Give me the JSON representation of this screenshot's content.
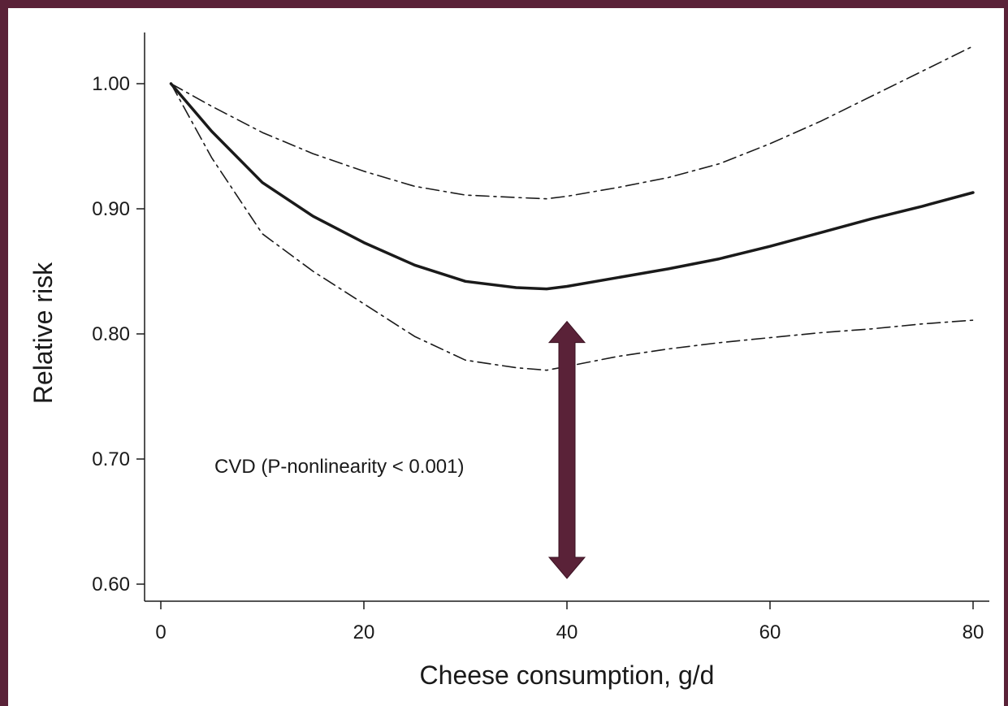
{
  "chart_data": {
    "type": "line",
    "title": "",
    "xlabel": "Cheese consumption, g/d",
    "ylabel": "Relative risk",
    "xlim": [
      0,
      80
    ],
    "ylim": [
      0.6,
      1.0
    ],
    "x_ticks": [
      0,
      20,
      40,
      60,
      80
    ],
    "y_ticks": [
      0.6,
      0.7,
      0.8,
      0.9,
      1.0
    ],
    "x_tick_labels": [
      "0",
      "20",
      "40",
      "60",
      "80"
    ],
    "y_tick_labels": [
      "0.60",
      "0.70",
      "0.80",
      "0.90",
      "1.00"
    ],
    "grid": false,
    "annotation": "CVD (P-nonlinearity < 0.001)",
    "series": [
      {
        "role": "estimate",
        "style": "solid",
        "x": [
          1,
          5,
          10,
          15,
          20,
          25,
          30,
          35,
          38,
          40,
          45,
          50,
          55,
          60,
          65,
          70,
          75,
          80
        ],
        "y": [
          1.0,
          0.962,
          0.921,
          0.894,
          0.873,
          0.855,
          0.842,
          0.837,
          0.836,
          0.838,
          0.845,
          0.852,
          0.86,
          0.87,
          0.881,
          0.892,
          0.902,
          0.913
        ]
      },
      {
        "role": "upper CI",
        "style": "dashdot",
        "x": [
          1,
          5,
          10,
          15,
          20,
          25,
          30,
          35,
          38,
          40,
          45,
          50,
          55,
          60,
          65,
          70,
          75,
          80
        ],
        "y": [
          1.0,
          0.982,
          0.961,
          0.944,
          0.93,
          0.918,
          0.911,
          0.909,
          0.908,
          0.91,
          0.917,
          0.925,
          0.936,
          0.952,
          0.97,
          0.99,
          1.01,
          1.03
        ]
      },
      {
        "role": "lower CI",
        "style": "dashdot",
        "x": [
          1,
          5,
          10,
          15,
          20,
          25,
          30,
          35,
          38,
          40,
          45,
          50,
          55,
          60,
          65,
          70,
          75,
          80
        ],
        "y": [
          1.0,
          0.941,
          0.88,
          0.85,
          0.824,
          0.798,
          0.779,
          0.773,
          0.771,
          0.774,
          0.782,
          0.788,
          0.793,
          0.797,
          0.801,
          0.804,
          0.808,
          0.811
        ]
      }
    ],
    "arrow": {
      "color": "#5a2238",
      "x": 40,
      "y_from": 0.6,
      "y_to": 0.81
    }
  }
}
